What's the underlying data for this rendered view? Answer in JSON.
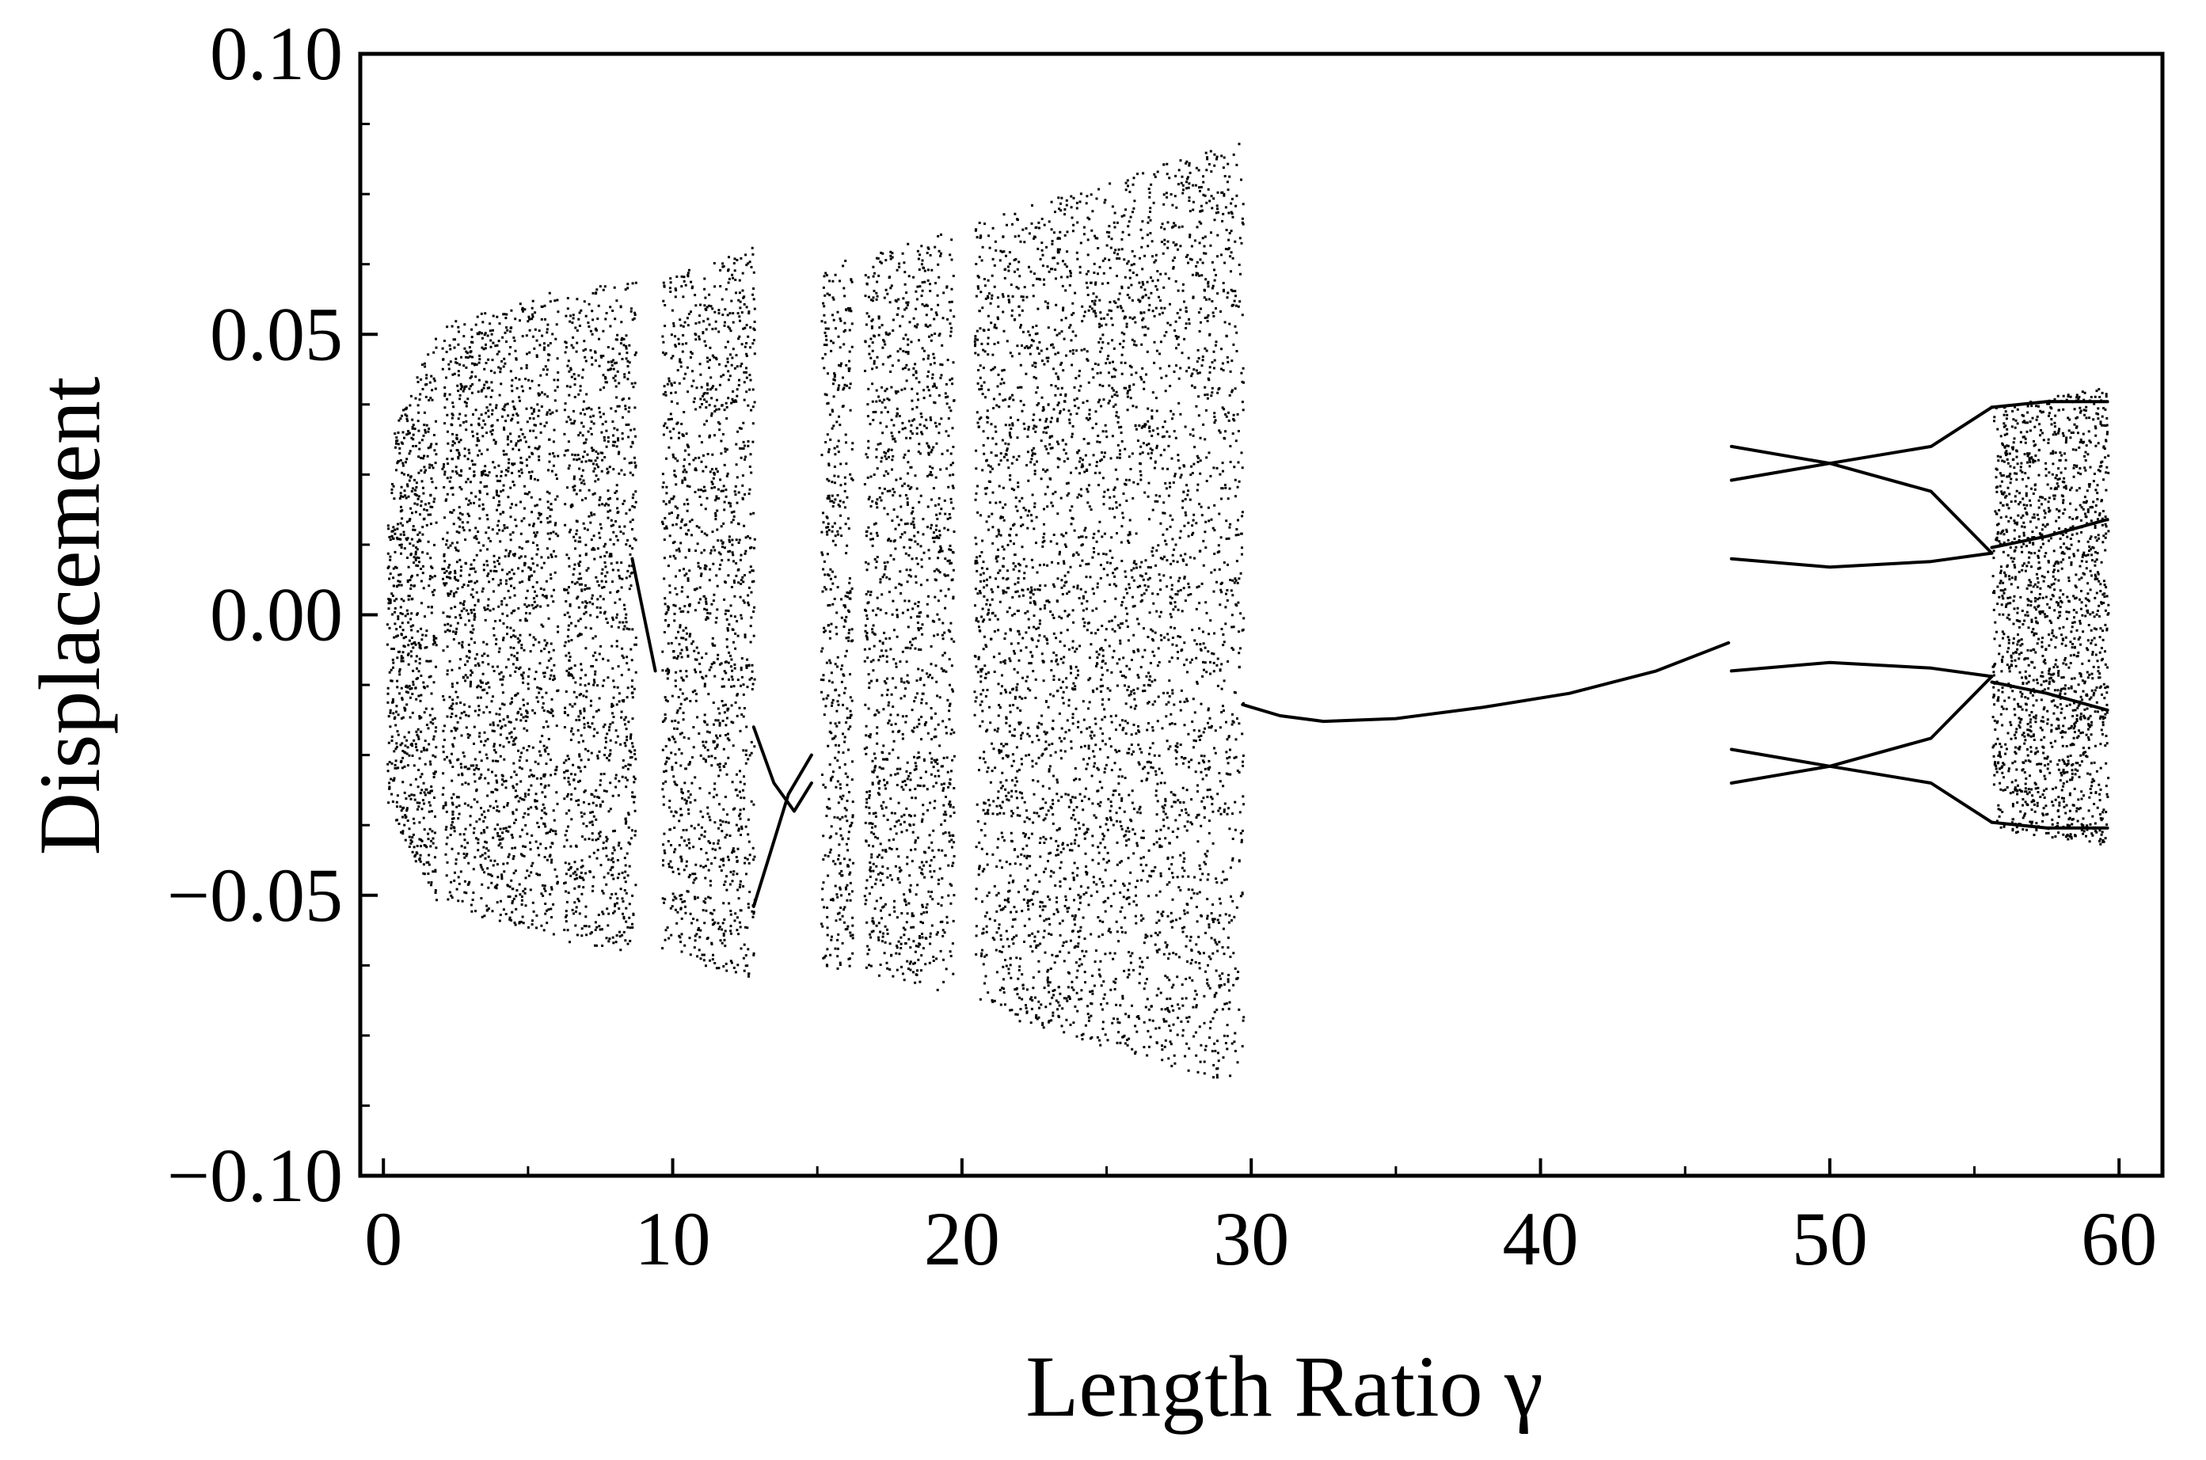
{
  "chart_data": {
    "type": "scatter",
    "title": "",
    "xlabel": "Length Ratio γ",
    "ylabel": "Displacement",
    "xlim": [
      -0.8,
      61.5
    ],
    "ylim": [
      -0.1,
      0.1
    ],
    "x_ticks": [
      0,
      10,
      20,
      30,
      40,
      50,
      60
    ],
    "x_tick_labels": [
      "0",
      "10",
      "20",
      "30",
      "40",
      "50",
      "60"
    ],
    "y_ticks": [
      0.1,
      0.05,
      0.0,
      -0.05,
      -0.1
    ],
    "y_tick_labels": [
      "0.10",
      "0.05",
      "0.00",
      "−0.05",
      "−0.10"
    ],
    "grid": false,
    "legend": "none",
    "marker_color": "#000000",
    "series": [
      {
        "regime": "chaotic bands",
        "bands": [
          {
            "x": [
              0.1,
              1.8
            ],
            "y_min_start": -0.034,
            "y_min_end": -0.051,
            "y_max_start": 0.03,
            "y_max_end": 0.051
          },
          {
            "x": [
              2.0,
              6.0
            ],
            "y_min_start": -0.052,
            "y_min_end": -0.057,
            "y_max_start": 0.052,
            "y_max_end": 0.058
          },
          {
            "x": [
              6.2,
              8.7
            ],
            "y_min_start": -0.058,
            "y_min_end": -0.06,
            "y_max_start": 0.058,
            "y_max_end": 0.06
          },
          {
            "x": [
              9.6,
              12.8
            ],
            "y_min_start": -0.06,
            "y_min_end": -0.065,
            "y_max_start": 0.06,
            "y_max_end": 0.066
          },
          {
            "x": [
              15.1,
              16.2
            ],
            "y_min_start": -0.063,
            "y_min_end": -0.064,
            "y_max_start": 0.062,
            "y_max_end": 0.064
          },
          {
            "x": [
              16.6,
              19.7
            ],
            "y_min_start": -0.064,
            "y_min_end": -0.068,
            "y_max_start": 0.064,
            "y_max_end": 0.069
          },
          {
            "x": [
              20.4,
              29.7
            ],
            "y_min_start": -0.07,
            "y_min_end": -0.084,
            "y_max_start": 0.07,
            "y_max_end": 0.085
          },
          {
            "x": [
              55.6,
              59.6
            ],
            "y_min_start": -0.038,
            "y_min_end": -0.041,
            "y_max_start": 0.037,
            "y_max_end": 0.041
          }
        ]
      },
      {
        "regime": "periodic branches",
        "branches": [
          {
            "x": [
              8.6,
              9.0,
              9.4
            ],
            "y": [
              0.01,
              0.0,
              -0.01
            ]
          },
          {
            "x": [
              12.8,
              13.5,
              14.2,
              14.8
            ],
            "y": [
              -0.02,
              -0.03,
              -0.035,
              -0.03
            ]
          },
          {
            "x": [
              12.8,
              13.4,
              14.0,
              14.8
            ],
            "y": [
              -0.052,
              -0.042,
              -0.032,
              -0.025
            ]
          },
          {
            "x": [
              29.7,
              31.0,
              32.5,
              35.0,
              38.0,
              41.0,
              44.0,
              46.5
            ],
            "y": [
              -0.016,
              -0.018,
              -0.019,
              -0.0185,
              -0.0165,
              -0.014,
              -0.01,
              -0.005
            ]
          },
          {
            "x": [
              46.6,
              50.0,
              53.5,
              55.6
            ],
            "y": [
              0.03,
              0.027,
              0.03,
              0.037
            ]
          },
          {
            "x": [
              46.6,
              50.0,
              53.5,
              55.6
            ],
            "y": [
              0.024,
              0.027,
              0.022,
              0.011
            ]
          },
          {
            "x": [
              46.6,
              50.0,
              53.5,
              55.6
            ],
            "y": [
              0.01,
              0.0085,
              0.0095,
              0.011
            ]
          },
          {
            "x": [
              46.6,
              50.0,
              53.5,
              55.6
            ],
            "y": [
              -0.01,
              -0.0085,
              -0.0095,
              -0.011
            ]
          },
          {
            "x": [
              46.6,
              50.0,
              53.5,
              55.6
            ],
            "y": [
              -0.024,
              -0.027,
              -0.022,
              -0.011
            ]
          },
          {
            "x": [
              46.6,
              50.0,
              53.5,
              55.6
            ],
            "y": [
              -0.03,
              -0.027,
              -0.03,
              -0.037
            ]
          },
          {
            "x": [
              55.6,
              57.5,
              59.6
            ],
            "y": [
              0.037,
              0.038,
              0.038
            ]
          },
          {
            "x": [
              55.6,
              57.5,
              59.6
            ],
            "y": [
              0.012,
              0.014,
              0.017
            ]
          },
          {
            "x": [
              55.6,
              57.5,
              59.6
            ],
            "y": [
              -0.012,
              -0.014,
              -0.017
            ]
          },
          {
            "x": [
              55.6,
              57.5,
              59.6
            ],
            "y": [
              -0.037,
              -0.038,
              -0.038
            ]
          }
        ]
      }
    ]
  }
}
